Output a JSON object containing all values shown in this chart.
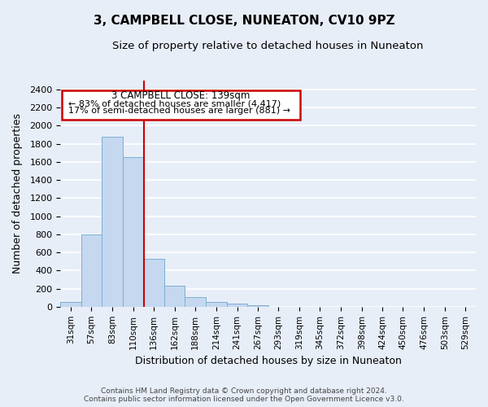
{
  "title": "3, CAMPBELL CLOSE, NUNEATON, CV10 9PZ",
  "subtitle": "Size of property relative to detached houses in Nuneaton",
  "xlabel": "Distribution of detached houses by size in Nuneaton",
  "ylabel": "Number of detached properties",
  "bar_edges": [
    31,
    57,
    83,
    110,
    136,
    162,
    188,
    214,
    241,
    267,
    293,
    319,
    345,
    372,
    398,
    424,
    450,
    476,
    503,
    529,
    555
  ],
  "bar_heights": [
    50,
    800,
    1880,
    1650,
    530,
    235,
    110,
    55,
    30,
    20,
    0,
    0,
    0,
    0,
    0,
    0,
    0,
    0,
    0,
    0
  ],
  "bar_color": "#c5d8f0",
  "bar_edge_color": "#7bafd4",
  "property_label": "3 CAMPBELL CLOSE: 139sqm",
  "annotation_line1": "← 83% of detached houses are smaller (4,417)",
  "annotation_line2": "17% of semi-detached houses are larger (881) →",
  "vline_color": "#cc0000",
  "vline_x": 136,
  "yticks": [
    0,
    200,
    400,
    600,
    800,
    1000,
    1200,
    1400,
    1600,
    1800,
    2000,
    2200,
    2400
  ],
  "ylim": [
    0,
    2500
  ],
  "xlim": [
    31,
    555
  ],
  "background_color": "#e8eef8",
  "grid_color": "#ffffff",
  "fig_background": "#e8eef8",
  "footer_line1": "Contains HM Land Registry data © Crown copyright and database right 2024.",
  "footer_line2": "Contains public sector information licensed under the Open Government Licence v3.0."
}
